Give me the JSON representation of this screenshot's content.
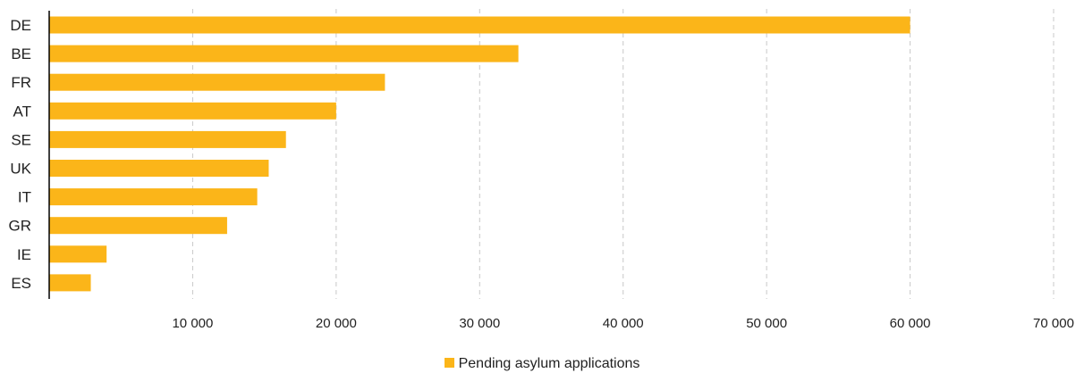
{
  "chart_data": {
    "type": "bar",
    "orientation": "horizontal",
    "categories": [
      "DE",
      "BE",
      "FR",
      "AT",
      "SE",
      "UK",
      "IT",
      "GR",
      "IE",
      "ES"
    ],
    "series": [
      {
        "name": "Pending asylum applications",
        "color": "#FBB519",
        "values": [
          60000,
          32700,
          23400,
          20000,
          16500,
          15300,
          14500,
          12400,
          4000,
          2900
        ]
      }
    ],
    "xlim": [
      0,
      70000
    ],
    "xticks": [
      10000,
      20000,
      30000,
      40000,
      50000,
      60000,
      70000
    ],
    "xtick_labels": [
      "10 000",
      "20 000",
      "30 000",
      "40 000",
      "50 000",
      "60 000",
      "70 000"
    ],
    "grid": "vertical dashed",
    "legend_position": "bottom"
  },
  "legend": {
    "label": "Pending asylum applications",
    "color": "#FBB519"
  }
}
